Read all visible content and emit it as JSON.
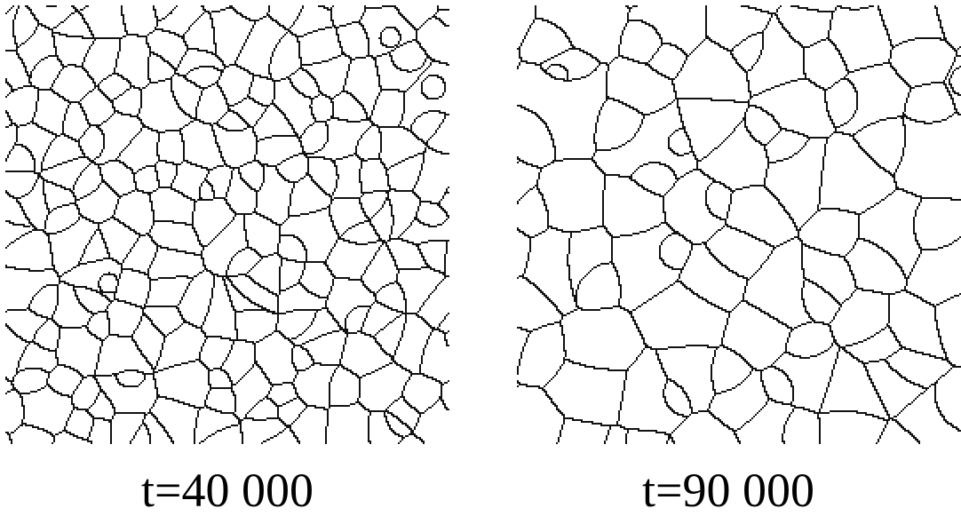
{
  "panels": [
    {
      "caption": "t=40 000",
      "grain_count_hint": "fine"
    },
    {
      "caption": "t=90 000",
      "grain_count_hint": "coarse"
    }
  ],
  "colors": {
    "boundary": "#111111",
    "background": "#ffffff"
  }
}
